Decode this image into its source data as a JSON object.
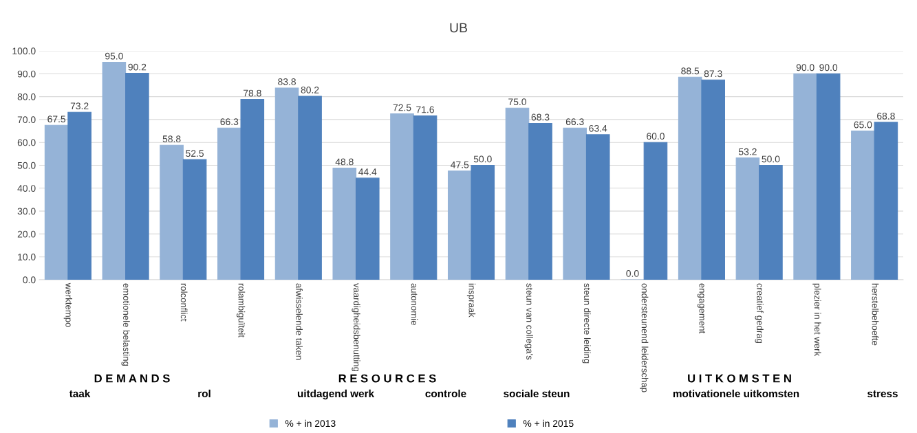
{
  "chart_data": {
    "type": "bar",
    "title": "UB",
    "categories": [
      "werktempo",
      "emotionele belasting",
      "rolconflict",
      "rolambiguïteit",
      "afwisselende taken",
      "vaardigheidsbenutting",
      "autonomie",
      "inspraak",
      "steun van collega's",
      "steun directe leiding",
      "ondersteunend leiderschap",
      "engagement",
      "creatief gedrag",
      "plezier in het werk",
      "herstelbehoefte"
    ],
    "series": [
      {
        "name": "% + in 2013",
        "color": "#95b3d7",
        "values": [
          67.5,
          95.0,
          58.8,
          66.3,
          83.8,
          48.8,
          72.5,
          47.5,
          75.0,
          66.3,
          0.0,
          88.5,
          53.2,
          90.0,
          65.0
        ],
        "value_labels": [
          "67.5",
          "95.0",
          "58.8",
          "66.3",
          "83.8",
          "48.8",
          "72.5",
          "47.5",
          "75.0",
          "66.3",
          "0.0",
          "88.5",
          "53.2",
          "90.0",
          "65.0"
        ]
      },
      {
        "name": "% + in 2015",
        "color": "#4f81bd",
        "values": [
          73.2,
          90.2,
          52.5,
          78.8,
          80.2,
          44.4,
          71.6,
          50.0,
          68.3,
          63.4,
          60.0,
          87.3,
          50.0,
          90.0,
          68.8
        ],
        "value_labels": [
          "73.2",
          "90.2",
          "52.5",
          "78.8",
          "80.2",
          "44.4",
          "71.6",
          "50.0",
          "68.3",
          "63.4",
          "60.0",
          "87.3",
          "50.0",
          "90.0",
          "68.8"
        ]
      }
    ],
    "ylim": [
      0,
      100
    ],
    "yticks": [
      {
        "value": 0,
        "label": "0.0"
      },
      {
        "value": 10,
        "label": "10.0"
      },
      {
        "value": 20,
        "label": "20.0"
      },
      {
        "value": 30,
        "label": "30.0"
      },
      {
        "value": 40,
        "label": "40.0"
      },
      {
        "value": 50,
        "label": "50.0"
      },
      {
        "value": 60,
        "label": "60.0"
      },
      {
        "value": 70,
        "label": "70.0"
      },
      {
        "value": 80,
        "label": "80.0"
      },
      {
        "value": 90,
        "label": "90.0"
      },
      {
        "value": 100,
        "label": "100.0"
      }
    ],
    "grid": "y",
    "legend": "bottom",
    "annotations": [
      "D E M A N D S",
      "taak",
      "rol",
      "R E S O U R C E S",
      "uitdagend werk",
      "controle",
      "sociale steun",
      "U I T K O M S T E N",
      "motivationele uitkomsten",
      "stress"
    ]
  }
}
